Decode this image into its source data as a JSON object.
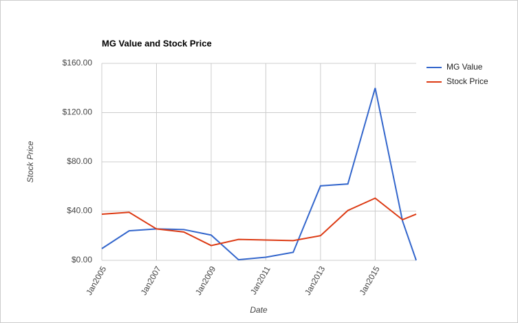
{
  "chart_data": {
    "type": "line",
    "title": "MG Value and Stock Price",
    "x_label": "Date",
    "y_label": "Stock Price",
    "x": [
      2005,
      2006,
      2007,
      2008,
      2009,
      2010,
      2011,
      2012,
      2013,
      2014,
      2015,
      2016,
      2016.5
    ],
    "series": [
      {
        "name": "MG Value",
        "color": "#3366cc",
        "values": [
          9.5,
          24,
          25.5,
          25,
          20.5,
          0.5,
          2.5,
          6.5,
          60.5,
          62,
          140,
          32,
          0
        ]
      },
      {
        "name": "Stock Price",
        "color": "#dc3912",
        "values": [
          37.5,
          39,
          25.5,
          23,
          12,
          17,
          16.5,
          16,
          20,
          40.5,
          50.5,
          33,
          37.5
        ]
      }
    ],
    "xlim": [
      2005,
      2016.5
    ],
    "xticks": [
      {
        "value": 2005,
        "label": "Jan2005"
      },
      {
        "value": 2007,
        "label": "Jan2007"
      },
      {
        "value": 2009,
        "label": "Jan2009"
      },
      {
        "value": 2011,
        "label": "Jan2011"
      },
      {
        "value": 2013,
        "label": "Jan2013"
      },
      {
        "value": 2015,
        "label": "Jan2015"
      }
    ],
    "ylim": [
      0,
      160
    ],
    "yticks": [
      {
        "value": 0,
        "label": "$0.00"
      },
      {
        "value": 40,
        "label": "$40.00"
      },
      {
        "value": 80,
        "label": "$80.00"
      },
      {
        "value": 120,
        "label": "$120.00"
      },
      {
        "value": 160,
        "label": "$160.00"
      }
    ],
    "grid": true,
    "legend": "right"
  }
}
